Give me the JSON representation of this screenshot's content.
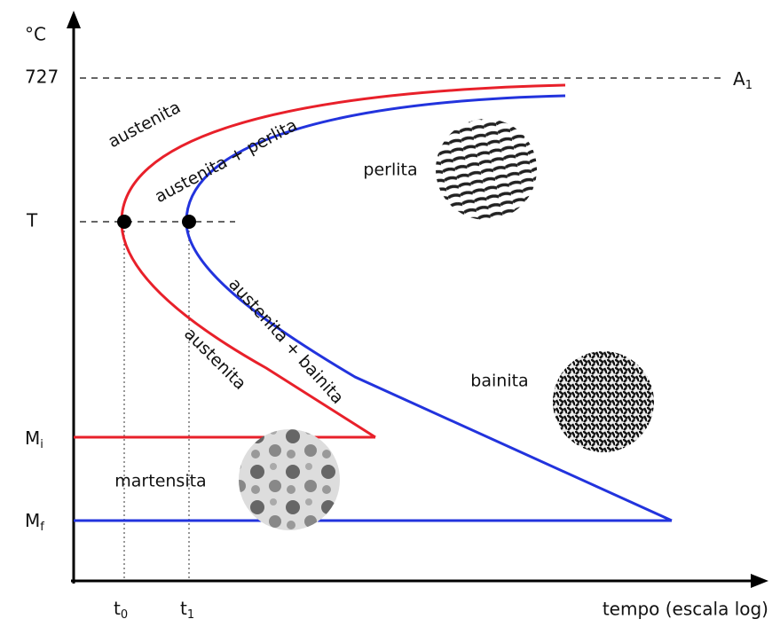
{
  "axes": {
    "y_unit": "°C",
    "x_label": "tempo (escala log)",
    "y_labels": {
      "a1_temp": "727",
      "t": "T",
      "mi": {
        "text": "M",
        "sub": "i"
      },
      "mf": {
        "text": "M",
        "sub": "f"
      }
    },
    "a1": {
      "text": "A",
      "sub": "1"
    },
    "x_marks": {
      "t0": {
        "text": "t",
        "sub": "0"
      },
      "t1": {
        "text": "t",
        "sub": "1"
      }
    }
  },
  "regions": {
    "austenita_top": "austenita",
    "austenita_perlita": "austenita + perlita",
    "perlita": "perlita",
    "austenita_bainita": "austenita + bainita",
    "austenita_bottom": "austenita",
    "bainita": "bainita",
    "martensita": "martensita"
  }
}
